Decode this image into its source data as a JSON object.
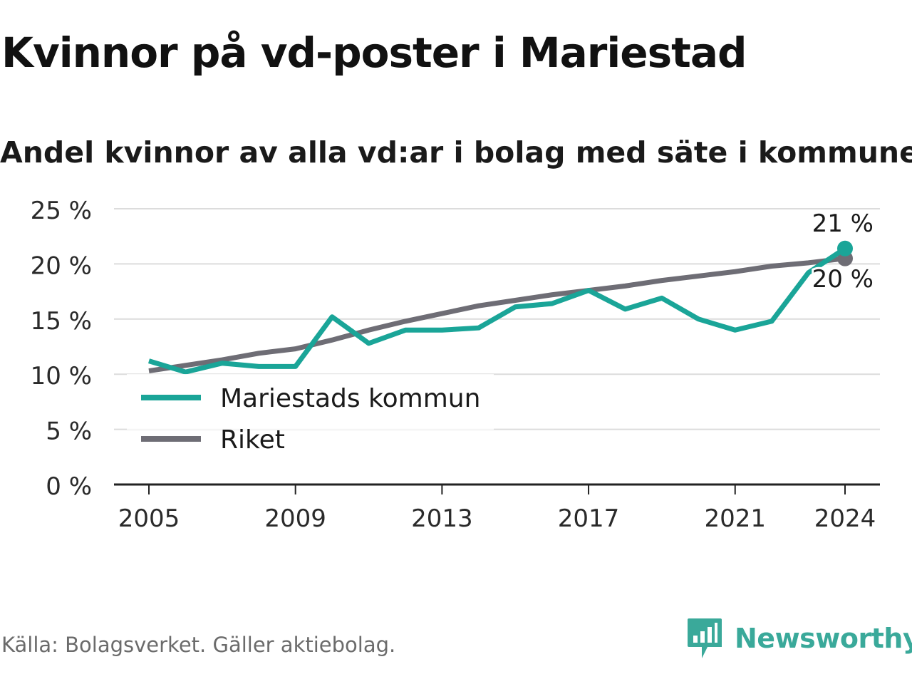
{
  "title": "Kvinnor på vd-poster i Mariestad",
  "subtitle": "Andel kvinnor av alla vd:ar i bolag med säte i kommunen",
  "source": "Källa: Bolagsverket. Gäller aktiebolag.",
  "brand": "Newsworthy",
  "colors": {
    "mariestad": "#1aa598",
    "riket": "#6e6d75",
    "grid": "#dcdcdc",
    "axis": "#222222",
    "brand": "#3aa99a"
  },
  "chart_data": {
    "type": "line",
    "title": "Kvinnor på vd-poster i Mariestad",
    "subtitle": "Andel kvinnor av alla vd:ar i bolag med säte i kommunen",
    "x": [
      2005,
      2006,
      2007,
      2008,
      2009,
      2010,
      2011,
      2012,
      2013,
      2014,
      2015,
      2016,
      2017,
      2018,
      2019,
      2020,
      2021,
      2022,
      2023,
      2024
    ],
    "x_ticks": [
      "2005",
      "2009",
      "2013",
      "2017",
      "2021",
      "2024"
    ],
    "y_ticks": [
      "0 %",
      "5 %",
      "10 %",
      "15 %",
      "20 %",
      "25 %"
    ],
    "ylim": [
      0,
      25
    ],
    "grid": true,
    "legend_position": "bottom-left",
    "series": [
      {
        "name": "Mariestads kommun",
        "color": "#1aa598",
        "values": [
          11.2,
          10.2,
          11.0,
          10.7,
          10.7,
          15.2,
          12.8,
          14.0,
          14.0,
          14.2,
          16.1,
          16.4,
          17.6,
          15.9,
          16.9,
          15.0,
          14.0,
          14.8,
          19.2,
          21.4
        ]
      },
      {
        "name": "Riket",
        "color": "#6e6d75",
        "values": [
          10.3,
          10.8,
          11.3,
          11.9,
          12.3,
          13.1,
          14.0,
          14.8,
          15.5,
          16.2,
          16.7,
          17.2,
          17.6,
          18.0,
          18.5,
          18.9,
          19.3,
          19.8,
          20.1,
          20.5
        ]
      }
    ],
    "end_labels": [
      "21 %",
      "20 %"
    ]
  }
}
